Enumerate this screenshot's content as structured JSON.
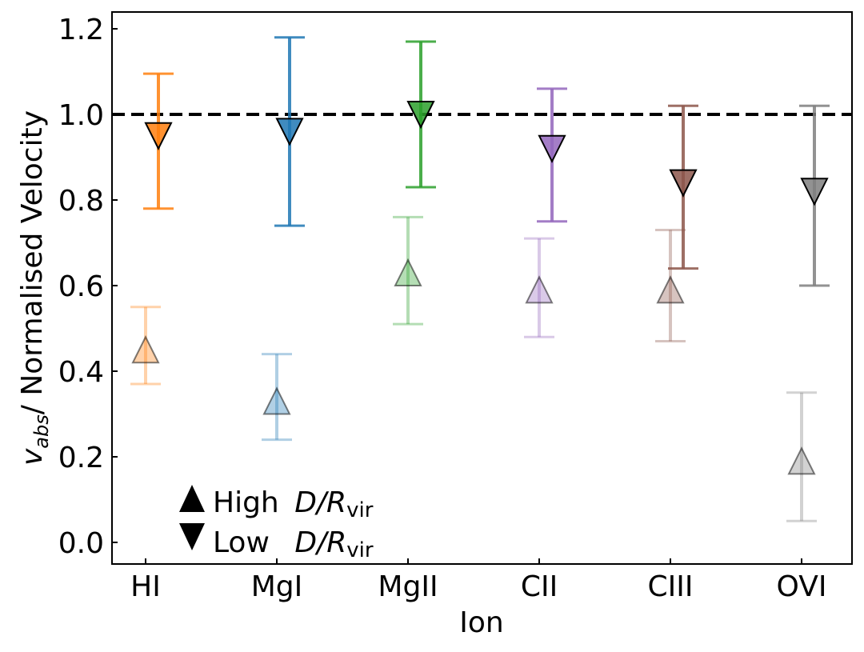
{
  "chart_data": {
    "type": "scatter",
    "title": "",
    "xlabel": "Ion",
    "ylabel_main": "v",
    "ylabel_sub": "abs",
    "ylabel_rest": "/ Normalised Velocity",
    "ylim": [
      -0.05,
      1.24
    ],
    "yticks": [
      "0.0",
      "0.2",
      "0.4",
      "0.6",
      "0.8",
      "1.0",
      "1.2"
    ],
    "categories": [
      "HI",
      "MgI",
      "MgII",
      "CII",
      "CIII",
      "OVI"
    ],
    "reference_line": 1.0,
    "colors": [
      "#ff7f0e",
      "#1f77b4",
      "#2ca02c",
      "#9467bd",
      "#8c564b",
      "#7f7f7f"
    ],
    "series": [
      {
        "name": "Low D/Rvir",
        "marker": "triangle-down",
        "alpha": 0.85,
        "values": [
          0.95,
          0.96,
          1.0,
          0.92,
          0.84,
          0.82
        ],
        "err_low": [
          0.78,
          0.74,
          0.83,
          0.75,
          0.64,
          0.6
        ],
        "err_high": [
          1.095,
          1.18,
          1.17,
          1.06,
          1.02,
          1.02
        ]
      },
      {
        "name": "High D/Rvir",
        "marker": "triangle-up",
        "alpha": 0.35,
        "values": [
          0.45,
          0.33,
          0.63,
          0.59,
          0.59,
          0.19
        ],
        "err_low": [
          0.37,
          0.24,
          0.51,
          0.48,
          0.47,
          0.05
        ],
        "err_high": [
          0.55,
          0.44,
          0.76,
          0.71,
          0.73,
          0.35
        ]
      }
    ],
    "legend": {
      "position": "bottom-left",
      "items": [
        {
          "marker": "triangle-up",
          "label": "High",
          "var": "D/R",
          "sub": "vir"
        },
        {
          "marker": "triangle-down",
          "label": "Low",
          "var": "D/R",
          "sub": "vir"
        }
      ]
    }
  }
}
